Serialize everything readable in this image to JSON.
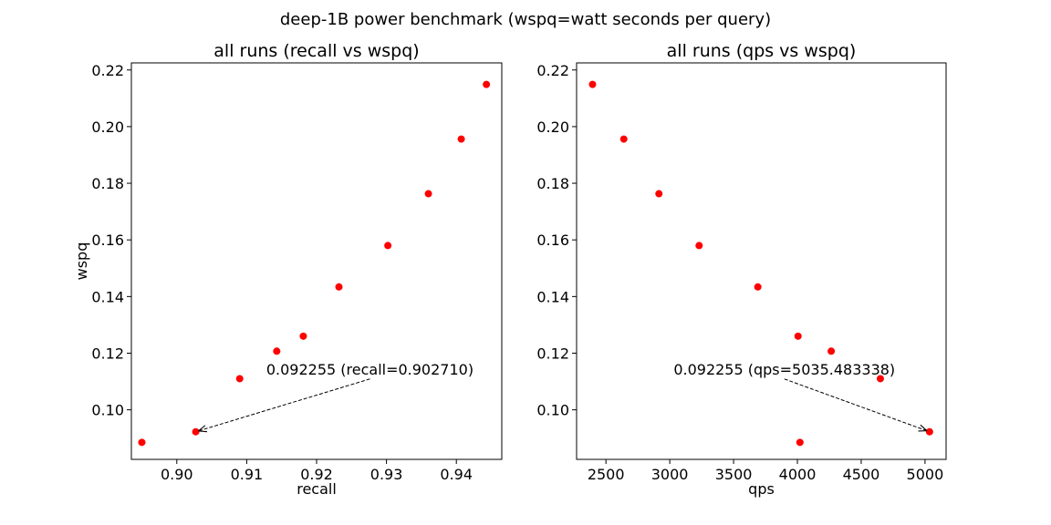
{
  "figure": {
    "suptitle": "deep-1B power benchmark (wspq=watt seconds per query)"
  },
  "chart_data": [
    {
      "type": "scatter",
      "title": "all runs (recall vs wspq)",
      "xlabel": "recall",
      "ylabel": "wspq",
      "xlim": [
        0.8935,
        0.9465
      ],
      "ylim": [
        0.0825,
        0.2225
      ],
      "xticks": [
        0.9,
        0.91,
        0.92,
        0.93,
        0.94
      ],
      "xtick_labels": [
        "0.90",
        "0.91",
        "0.92",
        "0.93",
        "0.94"
      ],
      "yticks": [
        0.1,
        0.12,
        0.14,
        0.16,
        0.18,
        0.2,
        0.22
      ],
      "ytick_labels": [
        "0.10",
        "0.12",
        "0.14",
        "0.16",
        "0.18",
        "0.20",
        "0.22"
      ],
      "grid": false,
      "point_color": "#ff0000",
      "points": [
        {
          "x": 0.895,
          "y": 0.0885
        },
        {
          "x": 0.90271,
          "y": 0.092255
        },
        {
          "x": 0.909,
          "y": 0.111
        },
        {
          "x": 0.9143,
          "y": 0.1207
        },
        {
          "x": 0.9181,
          "y": 0.126
        },
        {
          "x": 0.9232,
          "y": 0.1434
        },
        {
          "x": 0.9302,
          "y": 0.158
        },
        {
          "x": 0.936,
          "y": 0.1763
        },
        {
          "x": 0.9407,
          "y": 0.1956
        },
        {
          "x": 0.9443,
          "y": 0.2149
        }
      ],
      "annotation": {
        "text": "0.092255 (recall=0.902710)",
        "point": {
          "x": 0.90271,
          "y": 0.092255
        },
        "text_pos": {
          "x": 0.9128,
          "y": 0.1125
        }
      }
    },
    {
      "type": "scatter",
      "title": "all runs (qps vs wspq)",
      "xlabel": "qps",
      "ylabel": "",
      "xlim": [
        2270,
        5165
      ],
      "ylim": [
        0.0825,
        0.2225
      ],
      "xticks": [
        2500,
        3000,
        3500,
        4000,
        4500,
        5000
      ],
      "xtick_labels": [
        "2500",
        "3000",
        "3500",
        "4000",
        "4500",
        "5000"
      ],
      "yticks": [
        0.1,
        0.12,
        0.14,
        0.16,
        0.18,
        0.2,
        0.22
      ],
      "ytick_labels": [
        "0.10",
        "0.12",
        "0.14",
        "0.16",
        "0.18",
        "0.20",
        "0.22"
      ],
      "grid": false,
      "point_color": "#ff0000",
      "points": [
        {
          "x": 2395,
          "y": 0.2149
        },
        {
          "x": 2640,
          "y": 0.1956
        },
        {
          "x": 2915,
          "y": 0.1763
        },
        {
          "x": 3230,
          "y": 0.158
        },
        {
          "x": 3690,
          "y": 0.1434
        },
        {
          "x": 4005,
          "y": 0.126
        },
        {
          "x": 4020,
          "y": 0.0885
        },
        {
          "x": 4265,
          "y": 0.1207
        },
        {
          "x": 4650,
          "y": 0.111
        },
        {
          "x": 5035.483338,
          "y": 0.092255
        }
      ],
      "annotation": {
        "text": "0.092255 (qps=5035.483338)",
        "point": {
          "x": 5035.483338,
          "y": 0.092255
        },
        "text_pos": {
          "x": 3030,
          "y": 0.1125
        }
      }
    }
  ]
}
